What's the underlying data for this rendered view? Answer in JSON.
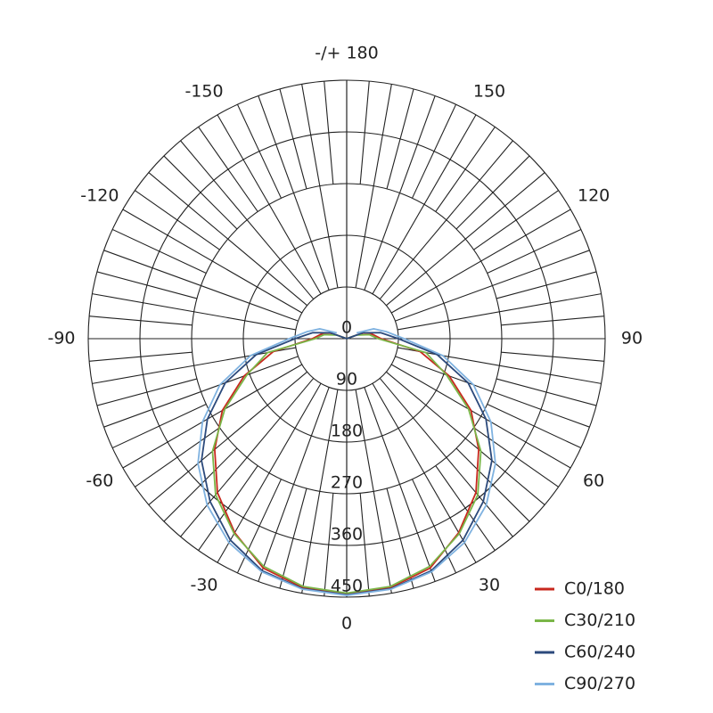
{
  "chart_data": {
    "type": "polar",
    "theta": [
      -120,
      -110,
      -100,
      -90,
      -80,
      -70,
      -60,
      -50,
      -40,
      -30,
      -20,
      -10,
      0,
      10,
      20,
      30,
      40,
      50,
      60,
      70,
      80,
      90,
      100,
      110,
      120
    ],
    "series": [
      {
        "name": "C0/180",
        "color": "#c8281e",
        "values": [
          0,
          20,
          45,
          60,
          130,
          190,
          250,
          300,
          350,
          390,
          425,
          440,
          445,
          440,
          425,
          390,
          350,
          300,
          250,
          190,
          130,
          60,
          45,
          20,
          0
        ]
      },
      {
        "name": "C30/210",
        "color": "#7ab648",
        "values": [
          0,
          18,
          40,
          55,
          140,
          185,
          245,
          305,
          355,
          392,
          422,
          438,
          443,
          438,
          422,
          392,
          355,
          305,
          245,
          185,
          140,
          55,
          40,
          18,
          0
        ]
      },
      {
        "name": "C60/240",
        "color": "#2c4a7c",
        "values": [
          0,
          30,
          60,
          90,
          160,
          225,
          280,
          330,
          370,
          405,
          430,
          442,
          446,
          442,
          430,
          405,
          370,
          330,
          280,
          225,
          160,
          90,
          60,
          30,
          0
        ]
      },
      {
        "name": "C90/270",
        "color": "#7fb2e0",
        "values": [
          20,
          50,
          70,
          100,
          170,
          235,
          290,
          338,
          378,
          410,
          432,
          443,
          447,
          443,
          432,
          410,
          378,
          338,
          290,
          235,
          170,
          100,
          70,
          50,
          20
        ]
      }
    ],
    "thetalim": [
      -180,
      180
    ],
    "thetaticks": [
      0,
      30,
      60,
      90,
      120,
      150,
      {
        "value": 180,
        "label": "-/+ 180"
      },
      -150,
      -120,
      -90,
      -60,
      -30
    ],
    "rlim": [
      0,
      450
    ],
    "rticks": [
      0,
      90,
      180,
      270,
      360,
      450
    ],
    "legend": "lower right"
  }
}
